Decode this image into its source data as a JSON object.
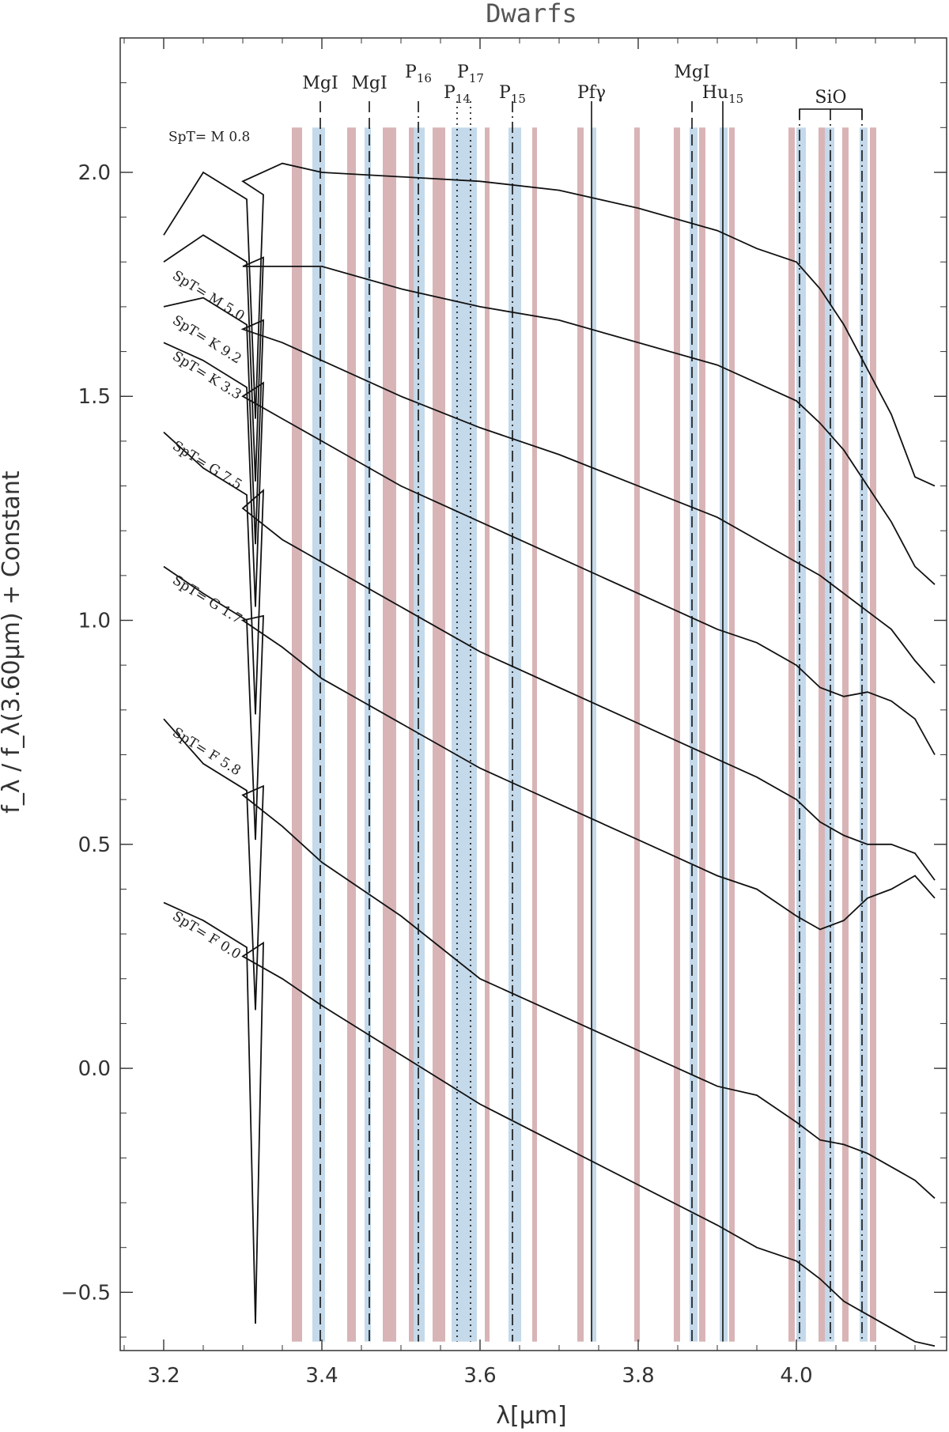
{
  "chart_data": {
    "type": "line",
    "title": "Dwarfs",
    "xlabel": "λ[μm]",
    "ylabel": "f_λ / f_λ(3.60μm) + Constant",
    "xlim": [
      3.145,
      4.19
    ],
    "ylim": [
      -0.63,
      2.3
    ],
    "xticks": [
      3.2,
      3.4,
      3.6,
      3.8,
      4.0
    ],
    "xtick_labels": [
      "3.2",
      "3.4",
      "3.6",
      "3.8",
      "4.0"
    ],
    "yticks": [
      -0.5,
      0.0,
      0.5,
      1.0,
      1.5,
      2.0
    ],
    "ytick_labels": [
      "−0.5",
      "0.0",
      "0.5",
      "1.0",
      "1.5",
      "2.0"
    ],
    "grid": false,
    "band_colors": {
      "red": "#d8b4b6",
      "blue": "#c4d9ea"
    },
    "red_bands": [
      [
        3.362,
        3.375
      ],
      [
        3.432,
        3.443
      ],
      [
        3.477,
        3.494
      ],
      [
        3.51,
        3.518
      ],
      [
        3.54,
        3.556
      ],
      [
        3.606,
        3.612
      ],
      [
        3.666,
        3.672
      ],
      [
        3.723,
        3.731
      ],
      [
        3.795,
        3.802
      ],
      [
        3.845,
        3.853
      ],
      [
        3.877,
        3.885
      ],
      [
        3.915,
        3.922
      ],
      [
        3.99,
        3.998
      ],
      [
        4.028,
        4.036
      ],
      [
        4.058,
        4.066
      ],
      [
        4.093,
        4.101
      ]
    ],
    "blue_bands": [
      [
        3.388,
        3.404
      ],
      [
        3.454,
        3.462
      ],
      [
        3.516,
        3.53
      ],
      [
        3.564,
        3.596
      ],
      [
        3.636,
        3.652
      ],
      [
        3.741,
        3.747
      ],
      [
        3.865,
        3.875
      ],
      [
        3.903,
        3.913
      ],
      [
        4.0,
        4.012
      ],
      [
        4.036,
        4.048
      ],
      [
        4.08,
        4.09
      ]
    ],
    "feature_lines": [
      {
        "label": "MgI",
        "sub": "",
        "x": 3.398,
        "style": "dash"
      },
      {
        "label": "MgI",
        "sub": "",
        "x": 3.46,
        "style": "dash"
      },
      {
        "label": "P",
        "sub": "16",
        "x": 3.522,
        "style": "dashdot"
      },
      {
        "label": "P",
        "sub": "14",
        "x": 3.571,
        "style": "dot"
      },
      {
        "label": "P",
        "sub": "17",
        "x": 3.588,
        "style": "dot"
      },
      {
        "label": "P",
        "sub": "15",
        "x": 3.641,
        "style": "dashdot"
      },
      {
        "label": "Pfγ",
        "sub": "",
        "x": 3.741,
        "style": "solid"
      },
      {
        "label": "MgI",
        "sub": "",
        "x": 3.868,
        "style": "dash"
      },
      {
        "label": "Hu",
        "sub": "15",
        "x": 3.907,
        "style": "solid"
      }
    ],
    "sio_lines": [
      4.004,
      4.043,
      4.083
    ],
    "sio_label": "SiO",
    "series": [
      {
        "name": "SpT= M 0.8",
        "x": [
          3.2,
          3.25,
          3.3,
          3.35,
          3.4,
          3.5,
          3.6,
          3.7,
          3.8,
          3.9,
          3.95,
          4.0,
          4.03,
          4.06,
          4.09,
          4.12,
          4.15,
          4.175
        ],
        "values": [
          1.86,
          2.0,
          1.98,
          2.02,
          2.0,
          1.99,
          1.98,
          1.96,
          1.92,
          1.87,
          1.83,
          1.8,
          1.74,
          1.66,
          1.56,
          1.46,
          1.32,
          1.3
        ]
      },
      {
        "name": "SpT= M 5.0",
        "x": [
          3.2,
          3.25,
          3.3,
          3.35,
          3.4,
          3.5,
          3.6,
          3.7,
          3.8,
          3.9,
          3.95,
          4.0,
          4.03,
          4.06,
          4.09,
          4.12,
          4.15,
          4.175
        ],
        "values": [
          1.8,
          1.86,
          1.79,
          1.79,
          1.79,
          1.74,
          1.7,
          1.67,
          1.62,
          1.57,
          1.53,
          1.49,
          1.44,
          1.38,
          1.3,
          1.22,
          1.12,
          1.08
        ]
      },
      {
        "name": "SpT= K 9.2",
        "x": [
          3.2,
          3.25,
          3.3,
          3.35,
          3.4,
          3.5,
          3.6,
          3.7,
          3.8,
          3.9,
          3.95,
          4.0,
          4.03,
          4.06,
          4.09,
          4.12,
          4.15,
          4.175
        ],
        "values": [
          1.7,
          1.72,
          1.65,
          1.62,
          1.58,
          1.5,
          1.43,
          1.37,
          1.3,
          1.23,
          1.18,
          1.13,
          1.1,
          1.06,
          1.02,
          0.98,
          0.91,
          0.86
        ]
      },
      {
        "name": "SpT= K 3.3",
        "x": [
          3.2,
          3.25,
          3.3,
          3.35,
          3.4,
          3.5,
          3.6,
          3.7,
          3.8,
          3.9,
          3.95,
          4.0,
          4.03,
          4.06,
          4.09,
          4.12,
          4.15,
          4.175
        ],
        "values": [
          1.62,
          1.58,
          1.5,
          1.45,
          1.4,
          1.3,
          1.22,
          1.14,
          1.06,
          0.98,
          0.95,
          0.9,
          0.85,
          0.83,
          0.84,
          0.82,
          0.78,
          0.7
        ]
      },
      {
        "name": "SpT= G 7.5",
        "x": [
          3.2,
          3.25,
          3.3,
          3.35,
          3.4,
          3.5,
          3.6,
          3.7,
          3.8,
          3.9,
          3.95,
          4.0,
          4.03,
          4.06,
          4.09,
          4.12,
          4.15,
          4.175
        ],
        "values": [
          1.42,
          1.34,
          1.25,
          1.18,
          1.13,
          1.03,
          0.93,
          0.85,
          0.77,
          0.69,
          0.65,
          0.6,
          0.55,
          0.52,
          0.5,
          0.5,
          0.48,
          0.42
        ]
      },
      {
        "name": "SpT= G 1.7",
        "x": [
          3.2,
          3.25,
          3.3,
          3.35,
          3.4,
          3.5,
          3.6,
          3.7,
          3.8,
          3.9,
          3.95,
          4.0,
          4.03,
          4.06,
          4.09,
          4.12,
          4.15,
          4.175
        ],
        "values": [
          1.12,
          1.06,
          1.0,
          0.94,
          0.87,
          0.77,
          0.67,
          0.59,
          0.51,
          0.43,
          0.4,
          0.34,
          0.31,
          0.33,
          0.38,
          0.4,
          0.43,
          0.38
        ]
      },
      {
        "name": "SpT= F 5.8",
        "x": [
          3.2,
          3.25,
          3.3,
          3.35,
          3.4,
          3.5,
          3.6,
          3.7,
          3.8,
          3.9,
          3.95,
          4.0,
          4.03,
          4.06,
          4.09,
          4.12,
          4.15,
          4.175
        ],
        "values": [
          0.78,
          0.68,
          0.61,
          0.54,
          0.46,
          0.34,
          0.2,
          0.12,
          0.04,
          -0.04,
          -0.06,
          -0.12,
          -0.16,
          -0.17,
          -0.19,
          -0.22,
          -0.25,
          -0.29
        ]
      },
      {
        "name": "SpT= F 0.0",
        "x": [
          3.2,
          3.25,
          3.3,
          3.35,
          3.4,
          3.5,
          3.6,
          3.7,
          3.8,
          3.9,
          3.95,
          4.0,
          4.03,
          4.06,
          4.09,
          4.12,
          4.15,
          4.175
        ],
        "values": [
          0.37,
          0.33,
          0.25,
          0.2,
          0.14,
          0.03,
          -0.08,
          -0.17,
          -0.26,
          -0.35,
          -0.4,
          -0.43,
          -0.47,
          -0.52,
          -0.55,
          -0.58,
          -0.61,
          -0.62
        ]
      }
    ]
  }
}
